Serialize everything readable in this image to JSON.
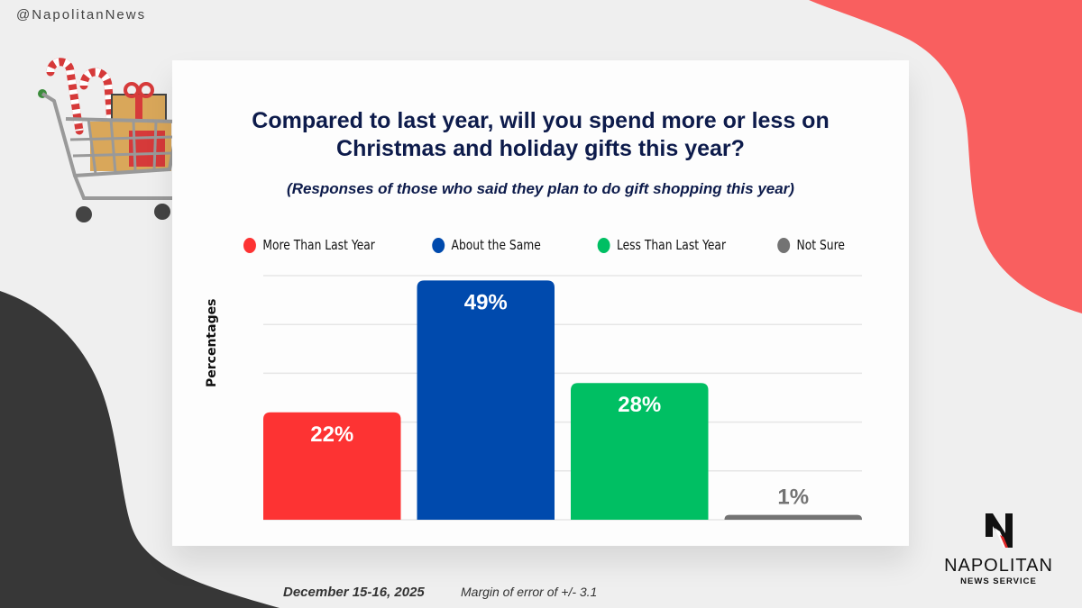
{
  "header": {
    "handle": "@NapolitanNews"
  },
  "colors": {
    "red": "#fd3333",
    "blue": "#004aad",
    "green": "#00bf63",
    "gray": "#737373",
    "title": "#0d1b4b",
    "blob_red": "#f95f5f",
    "blob_dark": "#373737"
  },
  "chart_data": {
    "type": "bar",
    "title": "Compared to last year, will you spend more or less on Christmas and holiday gifts this year?",
    "title_line1": "Compared to last year, will you spend more or less on",
    "title_line2": "Christmas and holiday gifts this year?",
    "subtitle": "(Responses of those who said they plan to do gift shopping this year)",
    "ylabel": "Percentages",
    "xlabel": "",
    "ylim": [
      0,
      50
    ],
    "grid": true,
    "legend_position": "top",
    "categories": [
      "More Than Last Year",
      "About the Same",
      "Less Than Last Year",
      "Not Sure"
    ],
    "values": [
      22,
      49,
      28,
      1
    ],
    "labels": [
      "22%",
      "49%",
      "28%",
      "1%"
    ],
    "bar_colors": [
      "#fd3333",
      "#004aad",
      "#00bf63",
      "#737373"
    ]
  },
  "footer": {
    "date": "December 15-16, 2025",
    "margin": "Margin of error of +/- 3.1"
  },
  "logo": {
    "name": "NAPOLITAN",
    "sub": "NEWS SERVICE"
  }
}
